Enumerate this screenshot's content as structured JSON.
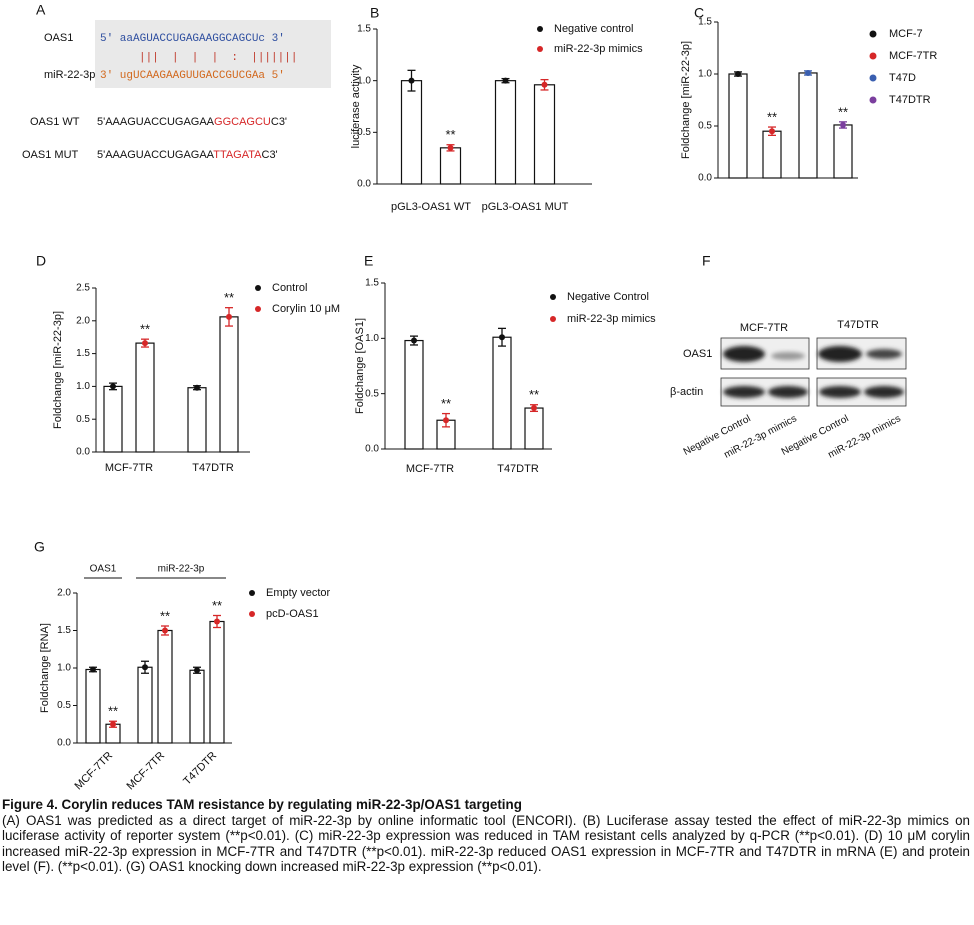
{
  "panel_a": {
    "label": "A",
    "gene": "OAS1",
    "gene_seq": "5' aaAGUACCUGAGAAGGCAGCUc 3'",
    "pairing": "|||  |  |  |  :  |||||||",
    "mirna": "miR-22-3p",
    "mirna_seq": "3' ugUCAAGAAGUUGACCGUCGAa 5'",
    "wt_label": "OAS1 WT",
    "wt_seq": [
      "5'AAAGUACCUGAGAA",
      "GGCAGCU",
      "C3'"
    ],
    "mut_label": "OAS1 MUT",
    "mut_seq": [
      "5'AAAGUACCUGAGAA",
      "TTAGATA",
      "C3'"
    ]
  },
  "chart_data": [
    {
      "type": "bar",
      "panel": "B",
      "ylabel": "luciferase activity",
      "categories": [
        "pGL3-OAS1 WT",
        "pGL3-OAS1 MUT"
      ],
      "series": [
        {
          "name": "Negative control",
          "color": "#111111",
          "values": [
            1.0,
            1.0
          ],
          "errors": [
            0.1,
            0.02
          ],
          "annotations": [
            null,
            null
          ]
        },
        {
          "name": "miR-22-3p mimics",
          "color": "#d62728",
          "values": [
            0.35,
            0.96
          ],
          "errors": [
            0.03,
            0.05
          ],
          "annotations": [
            "**",
            null
          ]
        }
      ],
      "ylim": [
        0,
        1.5
      ],
      "yticks": [
        {
          "value": 0,
          "label": "0.0"
        },
        {
          "value": 0.5,
          "label": "0.5"
        },
        {
          "value": 1,
          "label": "1.0"
        },
        {
          "value": 1.5,
          "label": "1.5"
        }
      ]
    },
    {
      "type": "bar",
      "panel": "C",
      "ylabel": "Foldchange [miR-22-3p]",
      "categories": [
        "MCF-7",
        "MCF-7TR",
        "T47D",
        "T47DTR"
      ],
      "colors": [
        "#111111",
        "#d62728",
        "#3a5fb0",
        "#7b3f9e"
      ],
      "values": [
        1.0,
        0.45,
        1.01,
        0.51
      ],
      "errors": [
        0.02,
        0.04,
        0.02,
        0.03
      ],
      "annotations": [
        null,
        "**",
        null,
        "**"
      ],
      "ylim": [
        0,
        1.5
      ],
      "yticks": [
        {
          "value": 0,
          "label": "0.0"
        },
        {
          "value": 0.5,
          "label": "0.5"
        },
        {
          "value": 1,
          "label": "1.0"
        },
        {
          "value": 1.5,
          "label": "1.5"
        }
      ]
    },
    {
      "type": "bar",
      "panel": "D",
      "ylabel": "Foldchange [miR-22-3p]",
      "categories": [
        "MCF-7TR",
        "T47DTR"
      ],
      "series": [
        {
          "name": "Control",
          "color": "#111111",
          "values": [
            1.0,
            0.98
          ],
          "errors": [
            0.05,
            0.03
          ],
          "annotations": [
            null,
            null
          ]
        },
        {
          "name": "Corylin 10 μM",
          "color": "#d62728",
          "values": [
            1.66,
            2.06
          ],
          "errors": [
            0.06,
            0.14
          ],
          "annotations": [
            "**",
            "**"
          ]
        }
      ],
      "ylim": [
        0,
        2.5
      ],
      "yticks": [
        {
          "value": 0,
          "label": "0.0"
        },
        {
          "value": 0.5,
          "label": "0.5"
        },
        {
          "value": 1,
          "label": "1.0"
        },
        {
          "value": 1.5,
          "label": "1.5"
        },
        {
          "value": 2,
          "label": "2.0"
        },
        {
          "value": 2.5,
          "label": "2.5"
        }
      ]
    },
    {
      "type": "bar",
      "panel": "E",
      "ylabel": "Foldchange [OAS1]",
      "categories": [
        "MCF-7TR",
        "T47DTR"
      ],
      "series": [
        {
          "name": "Negative Control",
          "color": "#111111",
          "values": [
            0.98,
            1.01
          ],
          "errors": [
            0.04,
            0.08
          ],
          "annotations": [
            null,
            null
          ]
        },
        {
          "name": "miR-22-3p mimics",
          "color": "#d62728",
          "values": [
            0.26,
            0.37
          ],
          "errors": [
            0.06,
            0.03
          ],
          "annotations": [
            "**",
            "**"
          ]
        }
      ],
      "ylim": [
        0,
        1.5
      ],
      "yticks": [
        {
          "value": 0,
          "label": "0.0"
        },
        {
          "value": 0.5,
          "label": "0.5"
        },
        {
          "value": 1,
          "label": "1.0"
        },
        {
          "value": 1.5,
          "label": "1.5"
        }
      ]
    },
    {
      "type": "bar",
      "panel": "G",
      "ylabel": "Foldchange [RNA]",
      "group_labels": [
        "OAS1",
        "miR-22-3p"
      ],
      "categories": [
        "MCF-7TR",
        "MCF-7TR",
        "T47DTR"
      ],
      "series": [
        {
          "name": "Empty vector",
          "color": "#111111",
          "values": [
            0.98,
            1.01,
            0.97
          ],
          "errors": [
            0.03,
            0.08,
            0.04
          ],
          "annotations": [
            null,
            null,
            null
          ]
        },
        {
          "name": "pcD-OAS1",
          "color": "#d62728",
          "values": [
            0.25,
            1.5,
            1.62
          ],
          "errors": [
            0.04,
            0.06,
            0.08
          ],
          "annotations": [
            "**",
            "**",
            "**"
          ]
        }
      ],
      "ylim": [
        0,
        2.0
      ],
      "yticks": [
        {
          "value": 0,
          "label": "0.0"
        },
        {
          "value": 0.5,
          "label": "0.5"
        },
        {
          "value": 1,
          "label": "1.0"
        },
        {
          "value": 1.5,
          "label": "1.5"
        },
        {
          "value": 2,
          "label": "2.0"
        }
      ]
    }
  ],
  "panel_f": {
    "label": "F",
    "cell_lines": [
      "MCF-7TR",
      "T47DTR"
    ],
    "rows": [
      "OAS1",
      "β-actin"
    ],
    "lanes": [
      "Negative Control",
      "miR-22-3p mimics",
      "Negative Control",
      "miR-22-3p mimics"
    ]
  },
  "caption": {
    "title": "Figure 4. Corylin reduces TAM resistance by regulating miR-22-3p/OAS1 targeting",
    "body": "(A) OAS1 was predicted as a direct target of miR-22-3p by online informatic tool (ENCORI). (B) Luciferase assay tested the effect of miR-22-3p mimics on luciferase activity of reporter system (**p<0.01). (C) miR-22-3p expression was reduced in TAM resistant cells analyzed by q-PCR (**p<0.01). (D) 10 μM corylin increased miR-22-3p expression in MCF-7TR and T47DTR (**p<0.01). miR-22-3p reduced OAS1 expression in MCF-7TR and T47DTR in mRNA (E) and protein level (F). (**p<0.01). (G) OAS1 knocking down increased miR-22-3p expression (**p<0.01)."
  }
}
